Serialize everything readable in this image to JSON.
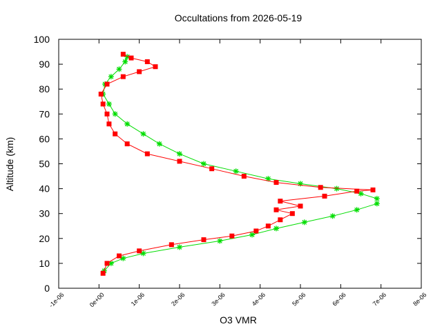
{
  "chart_data": {
    "type": "scatter",
    "title": "Occultations from 2026-05-19",
    "xlabel": "O3 VMR",
    "ylabel": "Altitude (km)",
    "xlim": [
      -1e-06,
      8e-06
    ],
    "ylim": [
      0,
      100
    ],
    "x_ticks": [
      {
        "value": -1e-06,
        "label": "-1e-06"
      },
      {
        "value": 0,
        "label": "0e+00"
      },
      {
        "value": 1e-06,
        "label": "1e-06"
      },
      {
        "value": 2e-06,
        "label": "2e-06"
      },
      {
        "value": 3e-06,
        "label": "3e-06"
      },
      {
        "value": 4e-06,
        "label": "4e-06"
      },
      {
        "value": 5e-06,
        "label": "5e-06"
      },
      {
        "value": 6e-06,
        "label": "6e-06"
      },
      {
        "value": 7e-06,
        "label": "7e-06"
      },
      {
        "value": 8e-06,
        "label": "8e-06"
      }
    ],
    "y_ticks": [
      {
        "value": 0,
        "label": "0"
      },
      {
        "value": 10,
        "label": "10"
      },
      {
        "value": 20,
        "label": "20"
      },
      {
        "value": 30,
        "label": "30"
      },
      {
        "value": 40,
        "label": "40"
      },
      {
        "value": 50,
        "label": "50"
      },
      {
        "value": 60,
        "label": "60"
      },
      {
        "value": 70,
        "label": "70"
      },
      {
        "value": 80,
        "label": "80"
      },
      {
        "value": 90,
        "label": "90"
      },
      {
        "value": 100,
        "label": "100"
      }
    ],
    "grid": false,
    "legend": "none",
    "series": [
      {
        "color": "#00dd00",
        "marker": "star",
        "points": [
          [
            1.3e-07,
            7
          ],
          [
            3e-07,
            10
          ],
          [
            6e-07,
            12
          ],
          [
            1.1e-06,
            14
          ],
          [
            2e-06,
            16.5
          ],
          [
            3e-06,
            19
          ],
          [
            3.8e-06,
            21.5
          ],
          [
            4.4e-06,
            24
          ],
          [
            5.1e-06,
            26.5
          ],
          [
            5.8e-06,
            29
          ],
          [
            6.4e-06,
            31.5
          ],
          [
            6.9e-06,
            34
          ],
          [
            6.9e-06,
            36
          ],
          [
            6.5e-06,
            38
          ],
          [
            5.9e-06,
            40
          ],
          [
            5e-06,
            42
          ],
          [
            4.2e-06,
            44
          ],
          [
            3.4e-06,
            47
          ],
          [
            2.6e-06,
            50
          ],
          [
            2e-06,
            54
          ],
          [
            1.5e-06,
            58
          ],
          [
            1.1e-06,
            62
          ],
          [
            7e-07,
            66
          ],
          [
            4e-07,
            70
          ],
          [
            2.5e-07,
            74
          ],
          [
            1e-07,
            78
          ],
          [
            1.5e-07,
            82
          ],
          [
            3e-07,
            85
          ],
          [
            5e-07,
            88
          ],
          [
            6.5e-07,
            91
          ],
          [
            7e-07,
            93
          ]
        ]
      },
      {
        "color": "#ff0000",
        "marker": "square",
        "points": [
          [
            1e-07,
            6
          ],
          [
            2e-07,
            10
          ],
          [
            5e-07,
            13
          ],
          [
            1e-06,
            15
          ],
          [
            1.8e-06,
            17.5
          ],
          [
            2.6e-06,
            19.5
          ],
          [
            3.3e-06,
            21
          ],
          [
            3.9e-06,
            23
          ],
          [
            4.2e-06,
            25
          ],
          [
            4.5e-06,
            27.5
          ],
          [
            4.8e-06,
            30
          ],
          [
            4.4e-06,
            31.5
          ],
          [
            5e-06,
            33
          ],
          [
            4.5e-06,
            35
          ],
          [
            5.6e-06,
            37
          ],
          [
            6.4e-06,
            39
          ],
          [
            6.8e-06,
            39.5
          ],
          [
            5.5e-06,
            40.5
          ],
          [
            4.4e-06,
            42.5
          ],
          [
            3.6e-06,
            45
          ],
          [
            2.8e-06,
            48
          ],
          [
            2e-06,
            51
          ],
          [
            1.2e-06,
            54
          ],
          [
            7e-07,
            58
          ],
          [
            4e-07,
            62
          ],
          [
            2.5e-07,
            66
          ],
          [
            2e-07,
            70
          ],
          [
            1e-07,
            74
          ],
          [
            5e-08,
            78
          ],
          [
            2e-07,
            82
          ],
          [
            6e-07,
            85
          ],
          [
            1e-06,
            87
          ],
          [
            1.4e-06,
            89
          ],
          [
            1.2e-06,
            91
          ],
          [
            8e-07,
            92.5
          ],
          [
            6e-07,
            94
          ]
        ]
      }
    ]
  }
}
